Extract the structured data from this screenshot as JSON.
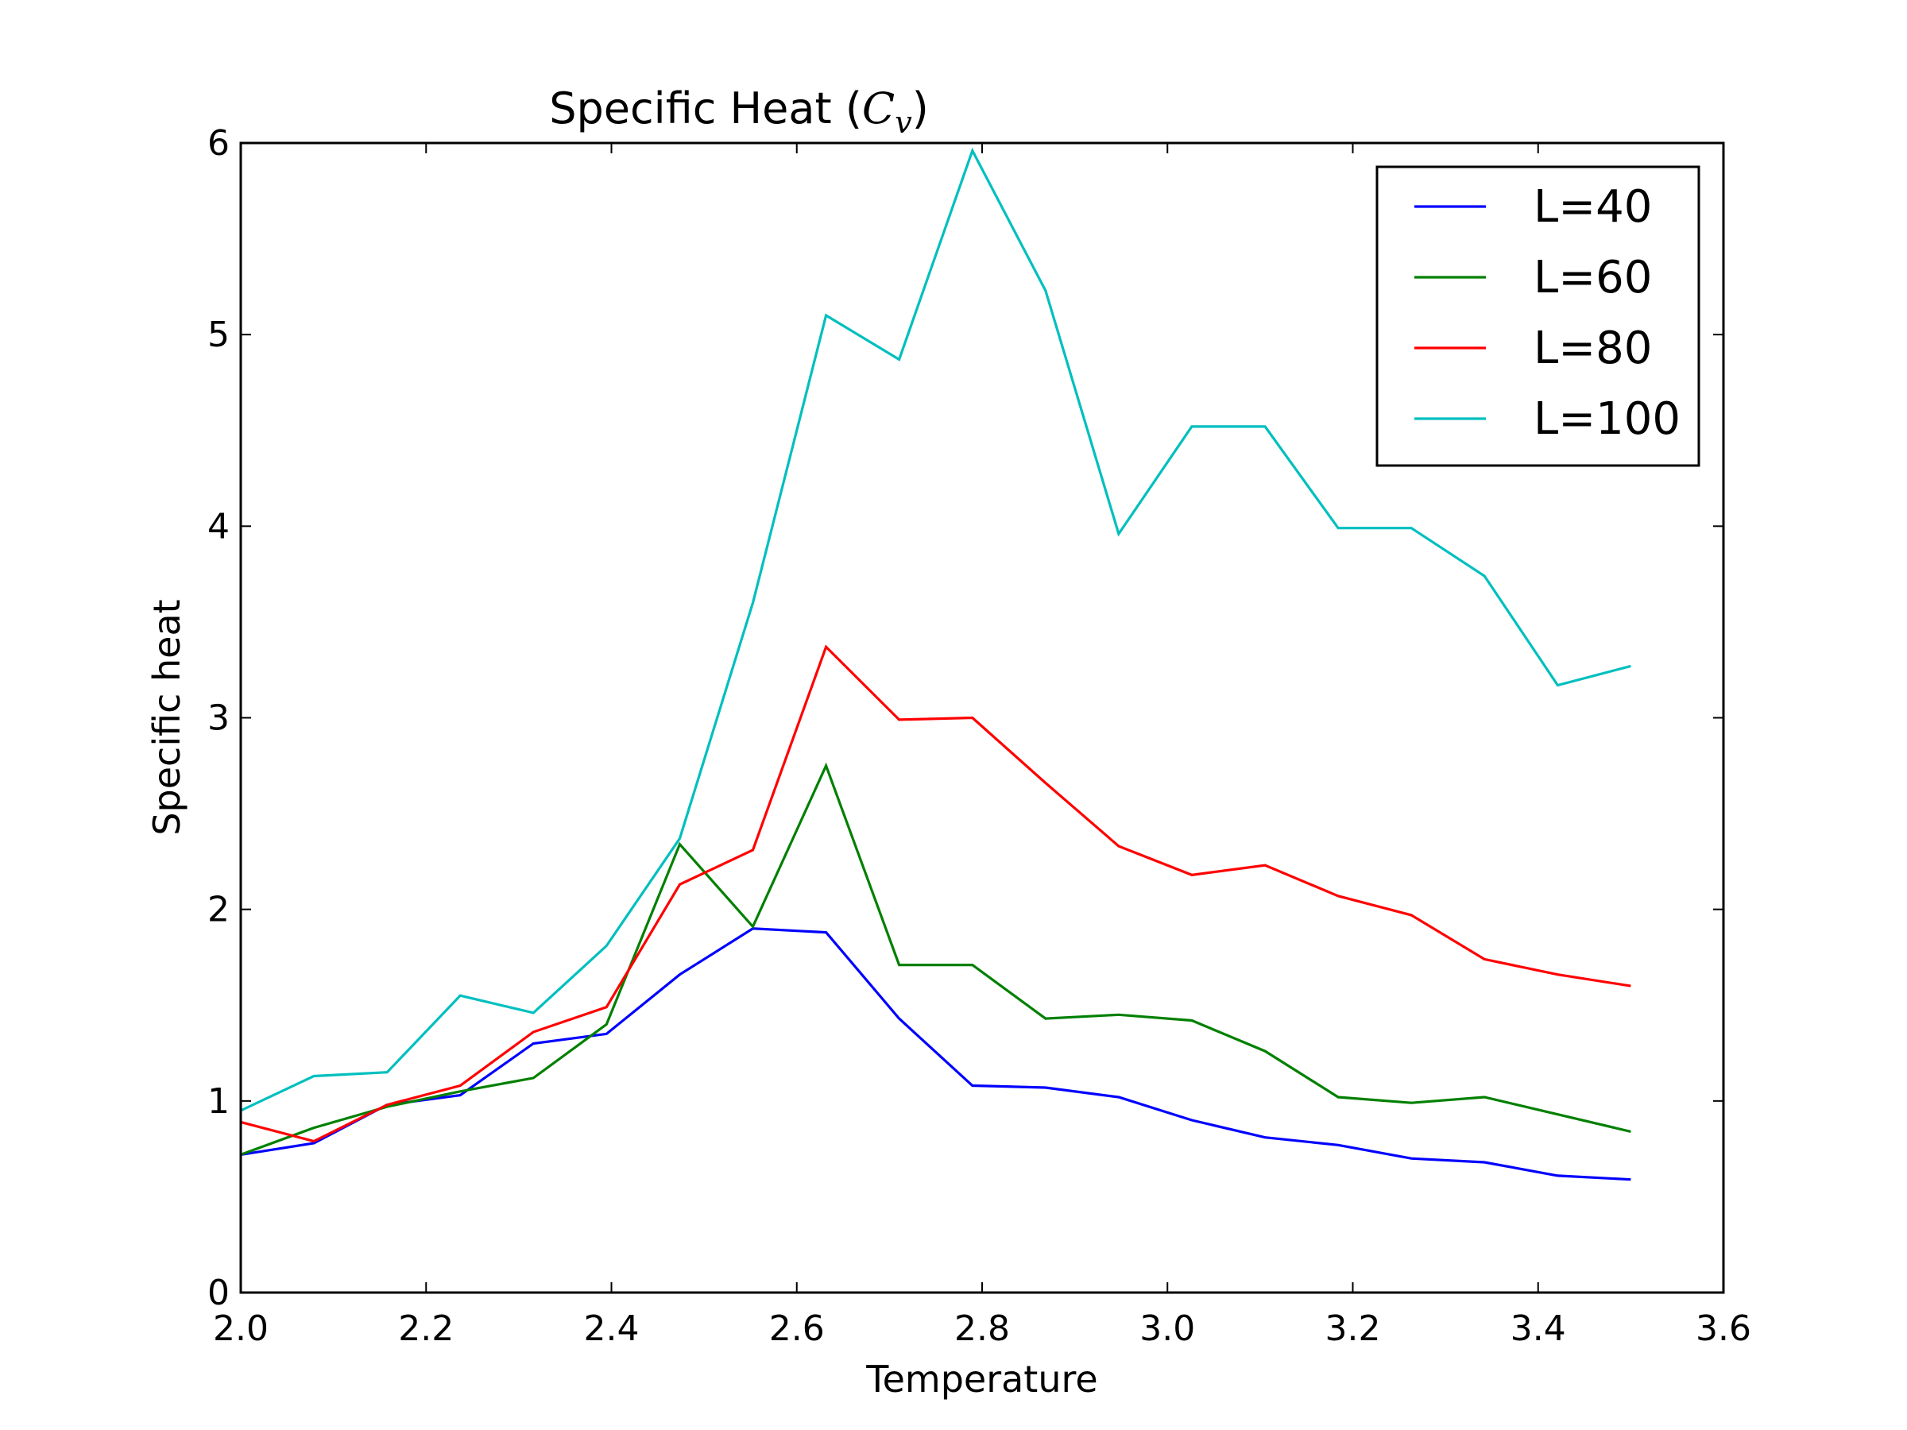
{
  "chart_data": {
    "type": "line",
    "title": {
      "prefix": "Specific Heat (",
      "symbol": "C",
      "subscript": "v",
      "suffix": ")"
    },
    "xlabel": "Temperature",
    "ylabel": "Specific heat",
    "xlim": [
      2.0,
      3.6
    ],
    "ylim": [
      0,
      6
    ],
    "xticks": [
      "2.0",
      "2.2",
      "2.4",
      "2.6",
      "2.8",
      "3.0",
      "3.2",
      "3.4",
      "3.6"
    ],
    "yticks": [
      "0",
      "1",
      "2",
      "3",
      "4",
      "5",
      "6"
    ],
    "grid": false,
    "legend_position": "top-right",
    "x": [
      2.0,
      2.0789,
      2.1579,
      2.2368,
      2.3158,
      2.3947,
      2.4737,
      2.5526,
      2.6316,
      2.7105,
      2.7895,
      2.8684,
      2.9474,
      3.0263,
      3.1053,
      3.1842,
      3.2632,
      3.3421,
      3.4211,
      3.5
    ],
    "series": [
      {
        "name": "L=40",
        "color": "#0000ff",
        "values": [
          0.72,
          0.78,
          0.98,
          1.03,
          1.3,
          1.35,
          1.66,
          1.9,
          1.88,
          1.43,
          1.08,
          1.07,
          1.02,
          0.9,
          0.81,
          0.77,
          0.7,
          0.68,
          0.61,
          0.59
        ]
      },
      {
        "name": "L=60",
        "color": "#008000",
        "values": [
          0.72,
          0.86,
          0.97,
          1.05,
          1.12,
          1.4,
          2.34,
          1.91,
          2.75,
          1.71,
          1.71,
          1.43,
          1.45,
          1.42,
          1.26,
          1.02,
          0.99,
          1.02,
          0.93,
          0.84
        ]
      },
      {
        "name": "L=80",
        "color": "#ff0000",
        "values": [
          0.89,
          0.79,
          0.98,
          1.08,
          1.36,
          1.49,
          2.13,
          2.31,
          3.37,
          2.99,
          3.0,
          2.66,
          2.33,
          2.18,
          2.23,
          2.07,
          1.97,
          1.74,
          1.66,
          1.6
        ]
      },
      {
        "name": "L=100",
        "color": "#00bfbf",
        "values": [
          0.95,
          1.13,
          1.15,
          1.55,
          1.46,
          1.81,
          2.37,
          3.6,
          5.1,
          4.87,
          5.96,
          5.23,
          3.96,
          4.52,
          4.52,
          3.99,
          3.99,
          3.74,
          3.17,
          3.27
        ]
      }
    ]
  }
}
